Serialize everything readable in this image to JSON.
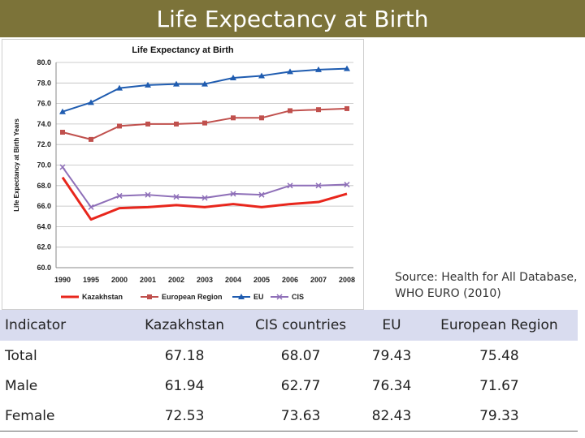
{
  "slide": {
    "title": "Life Expectancy at Birth"
  },
  "source": {
    "line1": "Source: Health for All Database,",
    "line2": "WHO EURO (2010)"
  },
  "chart_data": {
    "type": "line",
    "title": "Life Expectancy at Birth",
    "xlabel": "",
    "ylabel": "Life Expectancy at Birth Years",
    "ylim": [
      60,
      80
    ],
    "yticks": [
      "60.0",
      "62.0",
      "64.0",
      "66.0",
      "68.0",
      "70.0",
      "72.0",
      "74.0",
      "76.0",
      "78.0",
      "80.0"
    ],
    "categories": [
      "1990",
      "1995",
      "2000",
      "2001",
      "2002",
      "2003",
      "2004",
      "2005",
      "2006",
      "2007",
      "2008"
    ],
    "grid": true,
    "legend_position": "bottom",
    "series": [
      {
        "name": "Kazakhstan",
        "color": "#e8261c",
        "marker": "none",
        "values": [
          68.8,
          64.7,
          65.8,
          65.9,
          66.1,
          65.9,
          66.2,
          65.9,
          66.2,
          66.4,
          67.2
        ]
      },
      {
        "name": "European Region",
        "color": "#c0504d",
        "marker": "square",
        "values": [
          73.2,
          72.5,
          73.8,
          74.0,
          74.0,
          74.1,
          74.6,
          74.6,
          75.3,
          75.4,
          75.5
        ]
      },
      {
        "name": "EU",
        "color": "#1f5cb0",
        "marker": "triangle",
        "values": [
          75.2,
          76.1,
          77.5,
          77.8,
          77.9,
          77.9,
          78.5,
          78.7,
          79.1,
          79.3,
          79.4
        ]
      },
      {
        "name": "CIS",
        "color": "#8e6fb8",
        "marker": "x",
        "values": [
          69.8,
          65.9,
          67.0,
          67.1,
          66.9,
          66.8,
          67.2,
          67.1,
          68.0,
          68.0,
          68.1
        ]
      }
    ]
  },
  "table": {
    "headers": [
      "Indicator",
      "Kazakhstan",
      "CIS countries",
      "EU",
      "European Region"
    ],
    "rows": [
      [
        "Total",
        "67.18",
        "68.07",
        "79.43",
        "75.48"
      ],
      [
        "Male",
        "61.94",
        "62.77",
        "76.34",
        "71.67"
      ],
      [
        "Female",
        "72.53",
        "73.63",
        "82.43",
        "79.33"
      ]
    ]
  }
}
